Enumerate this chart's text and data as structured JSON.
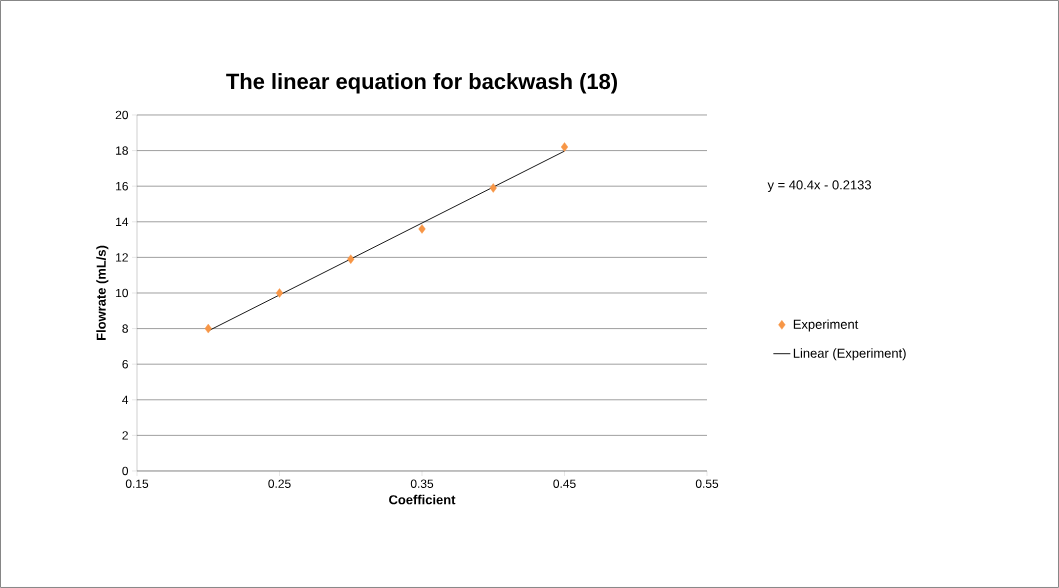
{
  "chart_data": {
    "type": "scatter",
    "title": "The linear equation  for backwash  (18)",
    "xlabel": "Coefficient",
    "ylabel": "Flowrate (mL/s)",
    "series": [
      {
        "name": "Experiment",
        "marker": "diamond",
        "color": "#f79646",
        "x": [
          0.2,
          0.25,
          0.3,
          0.35,
          0.4,
          0.45
        ],
        "values": [
          8.0,
          10.0,
          11.9,
          13.6,
          15.9,
          18.2
        ]
      },
      {
        "name": "Linear (Experiment)",
        "type": "line",
        "marker": "none",
        "color": "#000000",
        "x": [
          0.2,
          0.45
        ],
        "values": [
          7.87,
          17.97
        ]
      }
    ],
    "annotations": [
      "y = 40.4x - 0.2133"
    ],
    "xlim": [
      0.15,
      0.55
    ],
    "xticks": [
      0.15,
      0.25,
      0.35,
      0.45,
      0.55
    ],
    "ylim": [
      0,
      20
    ],
    "yticks": [
      0,
      2,
      4,
      6,
      8,
      10,
      12,
      14,
      16,
      18,
      20
    ],
    "grid": "y",
    "legend": "right"
  }
}
